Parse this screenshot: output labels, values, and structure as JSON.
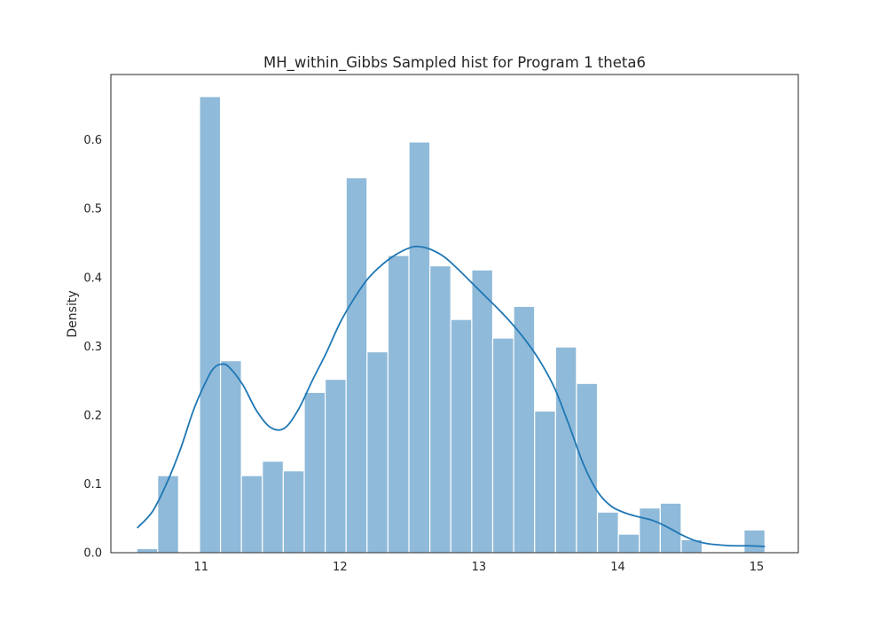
{
  "chart_data": {
    "type": "bar",
    "subtype": "histogram-with-kde",
    "title": "MH_within_Gibbs Sampled hist for Program 1 theta6",
    "xlabel": "",
    "ylabel": "Density",
    "xlim": [
      10.35,
      15.3
    ],
    "ylim": [
      0.0,
      0.695
    ],
    "xticks": [
      11,
      12,
      13,
      14,
      15
    ],
    "yticks": [
      0.0,
      0.1,
      0.2,
      0.3,
      0.4,
      0.5,
      0.6
    ],
    "ytick_labels": [
      "0.0",
      "0.1",
      "0.2",
      "0.3",
      "0.4",
      "0.5",
      "0.6"
    ],
    "grid": false,
    "colors": {
      "bar_fill": "#8fbad9",
      "bar_edge": "#ffffff",
      "kde_line": "#1f77b4",
      "frame": "#262626"
    },
    "bins": {
      "start": 10.536,
      "width": 0.1508,
      "heights": [
        0.006,
        0.112,
        0.0,
        0.663,
        0.279,
        0.112,
        0.133,
        0.119,
        0.233,
        0.252,
        0.545,
        0.292,
        0.432,
        0.597,
        0.417,
        0.339,
        0.411,
        0.312,
        0.358,
        0.206,
        0.299,
        0.246,
        0.059,
        0.027,
        0.065,
        0.072,
        0.019,
        0.0,
        0.0,
        0.033
      ]
    },
    "kde": {
      "x": [
        10.54,
        10.65,
        10.75,
        10.85,
        10.95,
        11.05,
        11.1,
        11.15,
        11.2,
        11.3,
        11.4,
        11.5,
        11.6,
        11.7,
        11.8,
        11.9,
        12.0,
        12.1,
        12.2,
        12.3,
        12.4,
        12.5,
        12.56,
        12.65,
        12.75,
        12.85,
        12.95,
        13.05,
        13.15,
        13.25,
        13.35,
        13.45,
        13.55,
        13.65,
        13.75,
        13.85,
        13.95,
        14.05,
        14.15,
        14.25,
        14.35,
        14.45,
        14.55,
        14.65,
        14.75,
        14.85,
        14.95,
        15.06
      ],
      "y": [
        0.036,
        0.06,
        0.1,
        0.15,
        0.21,
        0.255,
        0.27,
        0.274,
        0.27,
        0.244,
        0.206,
        0.182,
        0.181,
        0.208,
        0.25,
        0.29,
        0.334,
        0.369,
        0.398,
        0.418,
        0.433,
        0.443,
        0.445,
        0.441,
        0.43,
        0.412,
        0.392,
        0.372,
        0.352,
        0.33,
        0.305,
        0.275,
        0.237,
        0.185,
        0.13,
        0.09,
        0.068,
        0.058,
        0.052,
        0.047,
        0.038,
        0.027,
        0.018,
        0.013,
        0.011,
        0.01,
        0.01,
        0.009
      ]
    }
  }
}
